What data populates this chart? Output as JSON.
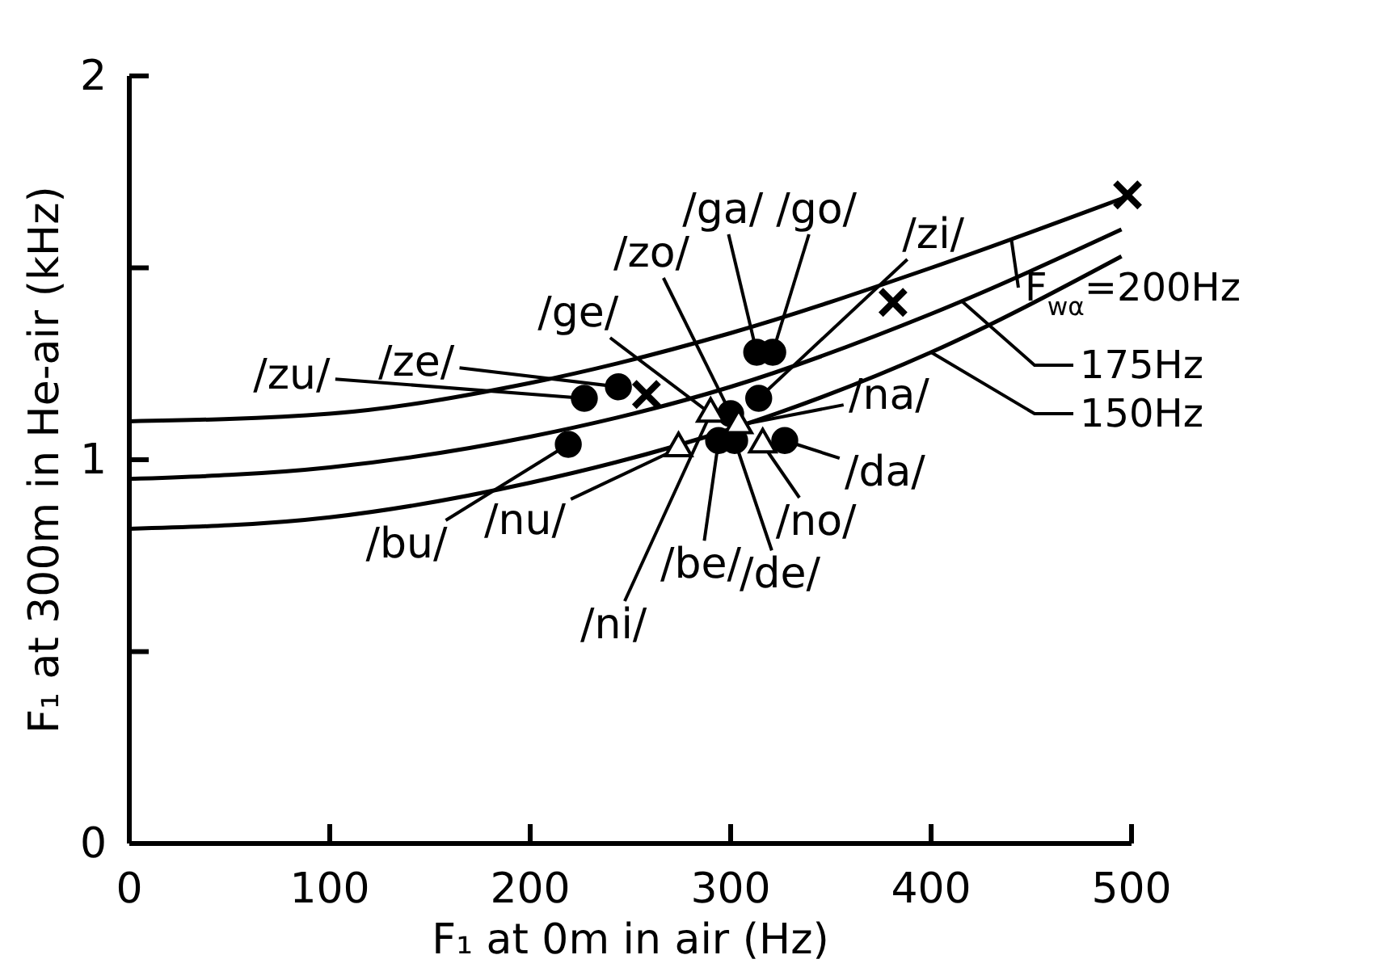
{
  "chart_data": {
    "type": "scatter",
    "xlabel": "F₁ at 0m in air  (Hz)",
    "ylabel": "F₁ at 300m in He-air (kHz)",
    "xlim": [
      0,
      500
    ],
    "ylim": [
      0,
      2
    ],
    "xticks": [
      0,
      100,
      200,
      300,
      400,
      500
    ],
    "yticks": [
      0,
      {
        "value": 0.5,
        "label": null
      },
      1,
      {
        "value": 1.5,
        "label": null
      },
      2
    ],
    "grid": false,
    "legend": "right",
    "series": [
      {
        "name": "F$_{wα}$=200Hz",
        "type": "line",
        "marker": "none",
        "color": "#000000",
        "x": [
          0,
          100,
          200,
          300,
          400,
          500
        ],
        "values": [
          1.1,
          1.12,
          1.2,
          1.33,
          1.5,
          1.69
        ]
      },
      {
        "name": "175Hz",
        "type": "line",
        "marker": "none",
        "color": "#000000",
        "x": [
          0,
          100,
          200,
          300,
          400,
          495
        ],
        "values": [
          0.95,
          0.98,
          1.06,
          1.19,
          1.38,
          1.6
        ]
      },
      {
        "name": "150Hz",
        "type": "line",
        "marker": "none",
        "color": "#000000",
        "x": [
          0,
          100,
          200,
          300,
          400,
          495
        ],
        "values": [
          0.82,
          0.85,
          0.94,
          1.08,
          1.28,
          1.53
        ]
      },
      {
        "type": "scatter",
        "marker": "circle",
        "color": "#000000",
        "x": [
          227,
          244,
          219,
          313,
          321,
          314,
          300,
          294,
          302,
          327
        ],
        "values": [
          1.16,
          1.19,
          1.04,
          1.28,
          1.28,
          1.16,
          1.12,
          1.05,
          1.05,
          1.05
        ]
      },
      {
        "type": "scatter",
        "marker": "triangle",
        "color": "#000000",
        "x": [
          274,
          290,
          304,
          316
        ],
        "values": [
          1.03,
          1.12,
          1.09,
          1.04
        ]
      },
      {
        "type": "scatter",
        "marker": "cross",
        "color": "#000000",
        "x": [
          258,
          381,
          498
        ],
        "values": [
          1.17,
          1.41,
          1.69
        ]
      }
    ],
    "annotations": [
      {
        "text": "/zu/",
        "x": 227,
        "y": 1.16
      },
      {
        "text": "/ze/",
        "x": 244,
        "y": 1.19
      },
      {
        "text": "/ge/",
        "x": 290,
        "y": 1.12
      },
      {
        "text": "/zo/",
        "x": 300,
        "y": 1.12
      },
      {
        "text": "/ga/",
        "x": 313,
        "y": 1.28
      },
      {
        "text": "/go/",
        "x": 321,
        "y": 1.28
      },
      {
        "text": "/zi/",
        "x": 314,
        "y": 1.16
      },
      {
        "text": "/na/",
        "x": 304,
        "y": 1.09
      },
      {
        "text": "/da/",
        "x": 327,
        "y": 1.05
      },
      {
        "text": "/no/",
        "x": 316,
        "y": 1.04
      },
      {
        "text": "/de/",
        "x": 302,
        "y": 1.05
      },
      {
        "text": "/be/",
        "x": 294,
        "y": 1.05
      },
      {
        "text": "/ni/",
        "x": 290,
        "y": 1.12
      },
      {
        "text": "/nu/",
        "x": 274,
        "y": 1.03
      },
      {
        "text": "/bu/",
        "x": 219,
        "y": 1.04
      }
    ]
  }
}
